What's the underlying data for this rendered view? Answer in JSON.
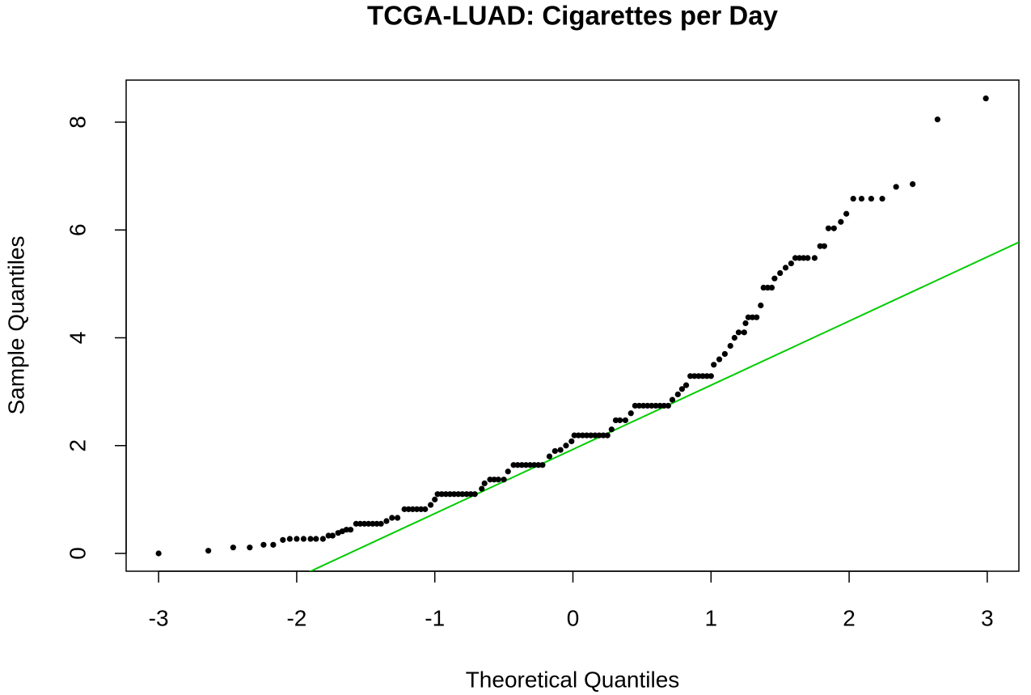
{
  "chart_data": {
    "type": "scatter",
    "title": "TCGA-LUAD: Cigarettes per Day",
    "x_label": "Theoretical Quantiles",
    "y_label": "Sample Quantiles",
    "xlim": [
      -3.235,
      3.229
    ],
    "ylim": [
      -0.33,
      8.78
    ],
    "xticks": [
      -3,
      -2,
      -1,
      0,
      1,
      2,
      3
    ],
    "yticks": [
      0,
      2,
      4,
      6,
      8
    ],
    "series": [
      {
        "color": "#000000",
        "x": [
          -3.0,
          -2.64,
          -2.46,
          -2.34,
          -2.24,
          -2.17,
          -2.1,
          -2.05,
          -2.0,
          -1.95,
          -1.9,
          -1.86,
          -1.81,
          -1.77,
          -1.74,
          -1.7,
          -1.67,
          -1.64,
          -1.61,
          -1.57,
          -1.54,
          -1.51,
          -1.48,
          -1.45,
          -1.42,
          -1.39,
          -1.35,
          -1.31,
          -1.27,
          -1.22,
          -1.19,
          -1.16,
          -1.13,
          -1.1,
          -1.07,
          -1.03,
          -1.0,
          -0.98,
          -0.95,
          -0.92,
          -0.89,
          -0.86,
          -0.83,
          -0.8,
          -0.77,
          -0.74,
          -0.71,
          -0.66,
          -0.64,
          -0.6,
          -0.57,
          -0.54,
          -0.5,
          -0.47,
          -0.43,
          -0.4,
          -0.37,
          -0.34,
          -0.31,
          -0.28,
          -0.25,
          -0.22,
          -0.17,
          -0.13,
          -0.09,
          -0.05,
          -0.01,
          0.01,
          0.04,
          0.07,
          0.1,
          0.13,
          0.16,
          0.19,
          0.22,
          0.25,
          0.28,
          0.31,
          0.34,
          0.38,
          0.42,
          0.45,
          0.48,
          0.51,
          0.54,
          0.57,
          0.6,
          0.63,
          0.66,
          0.69,
          0.72,
          0.76,
          0.79,
          0.82,
          0.85,
          0.88,
          0.91,
          0.94,
          0.97,
          1.0,
          1.02,
          1.06,
          1.1,
          1.14,
          1.17,
          1.2,
          1.24,
          1.25,
          1.27,
          1.3,
          1.33,
          1.36,
          1.38,
          1.41,
          1.44,
          1.46,
          1.5,
          1.54,
          1.58,
          1.61,
          1.64,
          1.67,
          1.7,
          1.75,
          1.79,
          1.82,
          1.85,
          1.89,
          1.94,
          1.98,
          2.03,
          2.09,
          2.16,
          2.24,
          2.34,
          2.46,
          2.64,
          2.99
        ],
        "values": [
          0,
          0.05,
          0.11,
          0.11,
          0.16,
          0.16,
          0.25,
          0.27,
          0.27,
          0.27,
          0.27,
          0.27,
          0.27,
          0.33,
          0.33,
          0.38,
          0.41,
          0.44,
          0.44,
          0.55,
          0.55,
          0.55,
          0.55,
          0.55,
          0.55,
          0.55,
          0.6,
          0.66,
          0.66,
          0.82,
          0.82,
          0.82,
          0.82,
          0.82,
          0.82,
          0.9,
          1.0,
          1.1,
          1.1,
          1.1,
          1.1,
          1.1,
          1.1,
          1.1,
          1.1,
          1.1,
          1.1,
          1.2,
          1.3,
          1.37,
          1.37,
          1.37,
          1.37,
          1.52,
          1.64,
          1.64,
          1.64,
          1.64,
          1.64,
          1.64,
          1.64,
          1.64,
          1.8,
          1.9,
          1.92,
          2.0,
          2.08,
          2.19,
          2.19,
          2.19,
          2.19,
          2.19,
          2.19,
          2.19,
          2.19,
          2.19,
          2.3,
          2.47,
          2.47,
          2.47,
          2.6,
          2.74,
          2.74,
          2.74,
          2.74,
          2.74,
          2.74,
          2.74,
          2.74,
          2.74,
          2.85,
          2.95,
          3.05,
          3.12,
          3.29,
          3.29,
          3.29,
          3.29,
          3.29,
          3.29,
          3.5,
          3.6,
          3.7,
          3.85,
          4.0,
          4.1,
          4.1,
          4.27,
          4.38,
          4.38,
          4.38,
          4.6,
          4.93,
          4.93,
          4.93,
          5.1,
          5.2,
          5.3,
          5.38,
          5.48,
          5.48,
          5.48,
          5.48,
          5.48,
          5.7,
          5.7,
          6.03,
          6.03,
          6.15,
          6.3,
          6.58,
          6.58,
          6.58,
          6.58,
          6.8,
          6.85,
          8.05,
          8.44
        ]
      }
    ],
    "reference_line": {
      "intercept": 1.93,
      "slope": 1.19,
      "color": "#00cc00"
    }
  }
}
